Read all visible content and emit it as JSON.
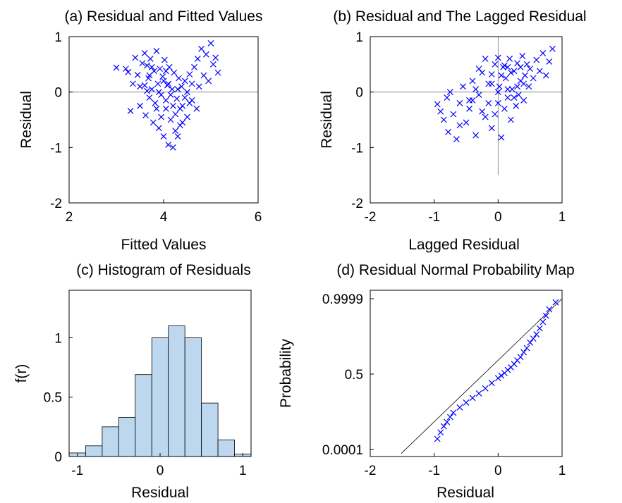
{
  "chart_data": [
    {
      "id": "a",
      "type": "scatter",
      "title": "(a) Residual and Fitted Values",
      "xlabel": "Fitted Values",
      "ylabel": "Residual",
      "xlim": [
        2,
        6
      ],
      "ylim": [
        -2,
        1
      ],
      "xticks": [
        "2",
        "4",
        "6"
      ],
      "yticks": [
        "-2",
        "-1",
        "0",
        "1"
      ],
      "reference_lines": [
        "y = 0"
      ],
      "marker": "x",
      "marker_color": "#0000ff",
      "points": [
        [
          3.0,
          0.44
        ],
        [
          3.2,
          0.42
        ],
        [
          3.25,
          0.36
        ],
        [
          3.3,
          -0.34
        ],
        [
          3.35,
          0.15
        ],
        [
          3.4,
          0.62
        ],
        [
          3.45,
          0.31
        ],
        [
          3.5,
          -0.25
        ],
        [
          3.55,
          0.52
        ],
        [
          3.6,
          0.7
        ],
        [
          3.6,
          0.12
        ],
        [
          3.62,
          -0.42
        ],
        [
          3.65,
          0.48
        ],
        [
          3.68,
          0.25
        ],
        [
          3.7,
          -0.1
        ],
        [
          3.72,
          0.6
        ],
        [
          3.75,
          0.05
        ],
        [
          3.78,
          -0.55
        ],
        [
          3.8,
          0.38
        ],
        [
          3.82,
          -0.2
        ],
        [
          3.85,
          0.74
        ],
        [
          3.88,
          0.15
        ],
        [
          3.9,
          -0.65
        ],
        [
          3.92,
          0.42
        ],
        [
          3.95,
          -0.05
        ],
        [
          3.98,
          0.28
        ],
        [
          4.0,
          -0.8
        ],
        [
          4.02,
          0.58
        ],
        [
          4.05,
          -0.3
        ],
        [
          4.08,
          0.12
        ],
        [
          4.1,
          -0.95
        ],
        [
          4.12,
          0.45
        ],
        [
          4.15,
          -0.5
        ],
        [
          4.18,
          0.05
        ],
        [
          4.2,
          -1.0
        ],
        [
          4.22,
          0.35
        ],
        [
          4.25,
          -0.4
        ],
        [
          4.28,
          -0.12
        ],
        [
          4.3,
          -0.8
        ],
        [
          4.32,
          0.25
        ],
        [
          4.35,
          -0.6
        ],
        [
          4.38,
          0.1
        ],
        [
          4.4,
          -0.25
        ],
        [
          4.45,
          0.2
        ],
        [
          4.5,
          -0.45
        ],
        [
          4.55,
          0.32
        ],
        [
          4.6,
          -0.15
        ],
        [
          4.65,
          0.45
        ],
        [
          4.7,
          -0.3
        ],
        [
          4.72,
          0.6
        ],
        [
          4.75,
          0.1
        ],
        [
          4.8,
          0.78
        ],
        [
          4.85,
          0.3
        ],
        [
          4.9,
          0.68
        ],
        [
          4.95,
          0.2
        ],
        [
          5.0,
          0.88
        ],
        [
          5.05,
          0.5
        ],
        [
          5.1,
          0.62
        ],
        [
          5.15,
          0.35
        ],
        [
          3.5,
          0.1
        ],
        [
          3.7,
          0.3
        ],
        [
          3.9,
          0.0
        ],
        [
          4.0,
          0.2
        ],
        [
          4.05,
          -0.15
        ],
        [
          4.1,
          0.15
        ],
        [
          4.15,
          -0.05
        ],
        [
          4.2,
          -0.25
        ],
        [
          4.3,
          0.05
        ],
        [
          4.4,
          -0.55
        ],
        [
          4.5,
          0.0
        ],
        [
          3.85,
          -0.3
        ],
        [
          3.95,
          -0.45
        ],
        [
          4.25,
          -0.7
        ],
        [
          4.35,
          -0.3
        ],
        [
          4.6,
          0.15
        ],
        [
          4.45,
          -0.1
        ],
        [
          3.75,
          0.45
        ],
        [
          4.05,
          0.38
        ],
        [
          3.65,
          0.02
        ],
        [
          4.55,
          -0.2
        ]
      ]
    },
    {
      "id": "b",
      "type": "scatter",
      "title": "(b) Residual and The Lagged Residual",
      "xlabel": "Lagged Residual",
      "ylabel": "Residual",
      "xlim": [
        -2,
        1
      ],
      "ylim": [
        -2,
        1
      ],
      "xticks": [
        "-2",
        "-1",
        "0",
        "1"
      ],
      "yticks": [
        "-2",
        "-1",
        "0",
        "1"
      ],
      "reference_lines": [
        "y = 0",
        "x = 0"
      ],
      "marker": "x",
      "marker_color": "#0000ff",
      "points": [
        [
          -0.95,
          -0.22
        ],
        [
          -0.9,
          -0.35
        ],
        [
          -0.85,
          -0.5
        ],
        [
          -0.8,
          -0.1
        ],
        [
          -0.78,
          -0.72
        ],
        [
          -0.75,
          0.0
        ],
        [
          -0.7,
          -0.4
        ],
        [
          -0.65,
          -0.85
        ],
        [
          -0.6,
          -0.2
        ],
        [
          -0.55,
          0.1
        ],
        [
          -0.5,
          -0.55
        ],
        [
          -0.45,
          -0.3
        ],
        [
          -0.4,
          0.2
        ],
        [
          -0.35,
          -0.78
        ],
        [
          -0.3,
          -0.05
        ],
        [
          -0.25,
          0.35
        ],
        [
          -0.2,
          -0.45
        ],
        [
          -0.15,
          0.15
        ],
        [
          -0.1,
          -0.65
        ],
        [
          -0.05,
          0.5
        ],
        [
          0.0,
          -0.2
        ],
        [
          0.02,
          0.1
        ],
        [
          0.05,
          -0.82
        ],
        [
          0.08,
          0.45
        ],
        [
          0.1,
          -0.3
        ],
        [
          0.12,
          0.25
        ],
        [
          0.15,
          -0.1
        ],
        [
          0.18,
          0.6
        ],
        [
          0.2,
          -0.5
        ],
        [
          0.22,
          0.05
        ],
        [
          0.25,
          0.38
        ],
        [
          0.28,
          -0.25
        ],
        [
          0.3,
          0.52
        ],
        [
          0.32,
          -0.05
        ],
        [
          0.35,
          0.2
        ],
        [
          0.38,
          0.65
        ],
        [
          0.4,
          -0.15
        ],
        [
          0.42,
          0.3
        ],
        [
          0.45,
          0.5
        ],
        [
          0.48,
          0.1
        ],
        [
          0.5,
          0.42
        ],
        [
          0.55,
          0.25
        ],
        [
          0.6,
          0.58
        ],
        [
          0.65,
          0.38
        ],
        [
          0.7,
          0.7
        ],
        [
          0.75,
          0.3
        ],
        [
          0.8,
          0.55
        ],
        [
          0.85,
          0.78
        ],
        [
          -0.3,
          0.42
        ],
        [
          -0.2,
          0.6
        ],
        [
          -0.1,
          0.15
        ],
        [
          0.0,
          0.62
        ],
        [
          0.05,
          0.3
        ],
        [
          0.1,
          0.48
        ],
        [
          0.15,
          0.05
        ],
        [
          0.2,
          0.35
        ],
        [
          -0.4,
          -0.15
        ],
        [
          -0.25,
          -0.35
        ],
        [
          -0.15,
          -0.2
        ],
        [
          -0.05,
          -0.4
        ],
        [
          0.3,
          0.1
        ],
        [
          0.25,
          -0.1
        ],
        [
          0.15,
          0.45
        ],
        [
          -0.35,
          0.05
        ],
        [
          -0.6,
          -0.6
        ],
        [
          -0.45,
          -0.15
        ],
        [
          0.4,
          0.15
        ],
        [
          0.35,
          0.45
        ],
        [
          -0.1,
          0.32
        ],
        [
          0.0,
          0.0
        ]
      ]
    },
    {
      "id": "c",
      "type": "bar",
      "title": "(c) Histogram of Residuals",
      "xlabel": "Residual",
      "ylabel": "f(r)",
      "xlim": [
        -1.1,
        1.1
      ],
      "ylim": [
        0,
        1.4
      ],
      "xticks": [
        "-1",
        "0",
        "1"
      ],
      "yticks": [
        "0",
        "0.5",
        "1"
      ],
      "bar_color": "#bdd7ee",
      "bin_edges": [
        -1.1,
        -0.9,
        -0.7,
        -0.5,
        -0.3,
        -0.1,
        0.1,
        0.3,
        0.5,
        0.7,
        0.9,
        1.1
      ],
      "values": [
        0.03,
        0.09,
        0.25,
        0.33,
        0.69,
        1.0,
        1.1,
        1.0,
        0.45,
        0.14,
        0.02
      ]
    },
    {
      "id": "d",
      "type": "scatter",
      "title": "(d) Residual Normal Probability Map",
      "xlabel": "Residual",
      "ylabel": "Probability",
      "xlim": [
        -2,
        1
      ],
      "xticks": [
        "-2",
        "-1",
        "0",
        "1"
      ],
      "yticks": [
        "0.0001",
        "0.5",
        "0.9999"
      ],
      "probability_scale": "normal",
      "marker": "x",
      "marker_color": "#0000ff",
      "reference_line": {
        "x": [
          -1.45,
          1.0
        ],
        "prob": [
          0.0001,
          0.9999
        ]
      },
      "points": [
        [
          -0.95,
          0.0007
        ],
        [
          -0.9,
          0.002
        ],
        [
          -0.85,
          0.005
        ],
        [
          -0.8,
          0.009
        ],
        [
          -0.75,
          0.017
        ],
        [
          -0.7,
          0.028
        ],
        [
          -0.6,
          0.05
        ],
        [
          -0.5,
          0.08
        ],
        [
          -0.4,
          0.12
        ],
        [
          -0.3,
          0.17
        ],
        [
          -0.2,
          0.24
        ],
        [
          -0.1,
          0.33
        ],
        [
          0.0,
          0.42
        ],
        [
          0.05,
          0.47
        ],
        [
          0.1,
          0.52
        ],
        [
          0.15,
          0.58
        ],
        [
          0.2,
          0.63
        ],
        [
          0.25,
          0.69
        ],
        [
          0.3,
          0.75
        ],
        [
          0.35,
          0.8
        ],
        [
          0.4,
          0.86
        ],
        [
          0.45,
          0.9
        ],
        [
          0.5,
          0.94
        ],
        [
          0.55,
          0.96
        ],
        [
          0.6,
          0.975
        ],
        [
          0.65,
          0.988
        ],
        [
          0.7,
          0.995
        ],
        [
          0.75,
          0.998
        ],
        [
          0.8,
          0.9993
        ],
        [
          0.9,
          0.9998
        ]
      ]
    }
  ]
}
